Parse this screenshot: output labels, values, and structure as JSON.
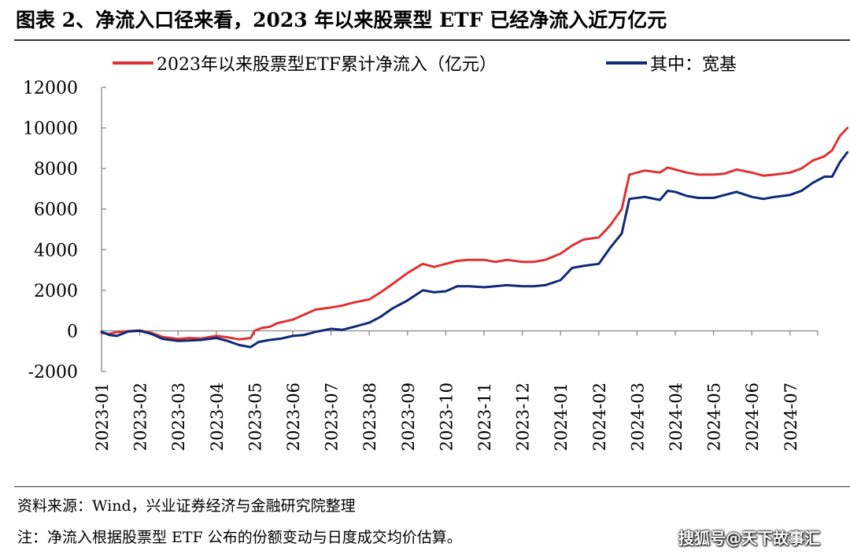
{
  "header": {
    "title": "图表 2、净流入口径来看，2023 年以来股票型 ETF 已经净流入近万亿元"
  },
  "footer": {
    "source": "资料来源：Wind，兴业证券经济与金融研究院整理",
    "note": "注：净流入根据股票型 ETF 公布的份额变动与日度成交均价估算。"
  },
  "watermark": "搜狐号@天下故事汇",
  "colors": {
    "series_red": "#e03232",
    "series_blue": "#0e2a78",
    "axis": "#808080"
  },
  "chart_data": {
    "type": "line",
    "title": "",
    "xlabel": "",
    "ylabel": "",
    "ylim": [
      -2000,
      12000
    ],
    "yticks": [
      -2000,
      0,
      2000,
      4000,
      6000,
      8000,
      10000,
      12000
    ],
    "xlim": [
      0,
      19
    ],
    "categories": [
      "2023-01",
      "2023-02",
      "2023-03",
      "2023-04",
      "2023-05",
      "2023-06",
      "2023-07",
      "2023-08",
      "2023-09",
      "2023-10",
      "2023-11",
      "2023-12",
      "2024-01",
      "2024-02",
      "2024-03",
      "2024-04",
      "2024-05",
      "2024-06",
      "2024-07"
    ],
    "legend_position": "top",
    "series": [
      {
        "name": "2023年以来股票型ETF累计净流入（亿元）",
        "color": "#e03232",
        "points": [
          [
            0,
            -100
          ],
          [
            0.2,
            -150
          ],
          [
            0.4,
            -60
          ],
          [
            0.7,
            -20
          ],
          [
            1.0,
            20
          ],
          [
            1.3,
            -100
          ],
          [
            1.6,
            -300
          ],
          [
            2.0,
            -400
          ],
          [
            2.3,
            -350
          ],
          [
            2.6,
            -380
          ],
          [
            3.0,
            -250
          ],
          [
            3.3,
            -320
          ],
          [
            3.6,
            -420
          ],
          [
            3.9,
            -350
          ],
          [
            4.0,
            0
          ],
          [
            4.2,
            150
          ],
          [
            4.4,
            200
          ],
          [
            4.6,
            380
          ],
          [
            5.0,
            550
          ],
          [
            5.3,
            800
          ],
          [
            5.6,
            1050
          ],
          [
            6.0,
            1150
          ],
          [
            6.3,
            1250
          ],
          [
            6.6,
            1400
          ],
          [
            7.0,
            1550
          ],
          [
            7.3,
            1900
          ],
          [
            7.6,
            2300
          ],
          [
            8.0,
            2850
          ],
          [
            8.4,
            3300
          ],
          [
            8.7,
            3150
          ],
          [
            9.0,
            3300
          ],
          [
            9.3,
            3450
          ],
          [
            9.6,
            3500
          ],
          [
            10.0,
            3500
          ],
          [
            10.3,
            3400
          ],
          [
            10.6,
            3500
          ],
          [
            11.0,
            3400
          ],
          [
            11.3,
            3400
          ],
          [
            11.6,
            3500
          ],
          [
            12.0,
            3800
          ],
          [
            12.3,
            4200
          ],
          [
            12.6,
            4500
          ],
          [
            13.0,
            4600
          ],
          [
            13.3,
            5200
          ],
          [
            13.6,
            6000
          ],
          [
            13.8,
            7700
          ],
          [
            14.2,
            7900
          ],
          [
            14.6,
            7800
          ],
          [
            14.8,
            8050
          ],
          [
            15.0,
            7950
          ],
          [
            15.3,
            7800
          ],
          [
            15.6,
            7700
          ],
          [
            16.0,
            7700
          ],
          [
            16.3,
            7750
          ],
          [
            16.6,
            7950
          ],
          [
            17.0,
            7800
          ],
          [
            17.3,
            7650
          ],
          [
            17.6,
            7700
          ],
          [
            18.0,
            7800
          ],
          [
            18.3,
            8000
          ],
          [
            18.6,
            8400
          ],
          [
            18.9,
            8600
          ],
          [
            19.1,
            8900
          ],
          [
            19.3,
            9600
          ],
          [
            19.5,
            10000
          ]
        ]
      },
      {
        "name": "其中：宽基",
        "color": "#0e2a78",
        "points": [
          [
            0,
            -50
          ],
          [
            0.2,
            -200
          ],
          [
            0.4,
            -250
          ],
          [
            0.7,
            -30
          ],
          [
            1.0,
            0
          ],
          [
            1.3,
            -150
          ],
          [
            1.6,
            -400
          ],
          [
            2.0,
            -500
          ],
          [
            2.3,
            -480
          ],
          [
            2.6,
            -450
          ],
          [
            3.0,
            -350
          ],
          [
            3.3,
            -500
          ],
          [
            3.6,
            -700
          ],
          [
            3.9,
            -800
          ],
          [
            4.1,
            -550
          ],
          [
            4.4,
            -450
          ],
          [
            4.7,
            -380
          ],
          [
            5.0,
            -250
          ],
          [
            5.3,
            -200
          ],
          [
            5.6,
            -50
          ],
          [
            6.0,
            100
          ],
          [
            6.3,
            50
          ],
          [
            6.6,
            200
          ],
          [
            7.0,
            400
          ],
          [
            7.3,
            700
          ],
          [
            7.6,
            1100
          ],
          [
            8.0,
            1500
          ],
          [
            8.4,
            2000
          ],
          [
            8.7,
            1900
          ],
          [
            9.0,
            1950
          ],
          [
            9.3,
            2200
          ],
          [
            9.6,
            2200
          ],
          [
            10.0,
            2150
          ],
          [
            10.3,
            2200
          ],
          [
            10.6,
            2250
          ],
          [
            11.0,
            2200
          ],
          [
            11.3,
            2200
          ],
          [
            11.6,
            2250
          ],
          [
            12.0,
            2500
          ],
          [
            12.3,
            3100
          ],
          [
            12.6,
            3200
          ],
          [
            13.0,
            3300
          ],
          [
            13.3,
            4100
          ],
          [
            13.6,
            4800
          ],
          [
            13.8,
            6500
          ],
          [
            14.2,
            6600
          ],
          [
            14.6,
            6450
          ],
          [
            14.8,
            6900
          ],
          [
            15.0,
            6850
          ],
          [
            15.3,
            6650
          ],
          [
            15.6,
            6550
          ],
          [
            16.0,
            6550
          ],
          [
            16.3,
            6700
          ],
          [
            16.6,
            6850
          ],
          [
            17.0,
            6600
          ],
          [
            17.3,
            6500
          ],
          [
            17.6,
            6600
          ],
          [
            18.0,
            6700
          ],
          [
            18.3,
            6900
          ],
          [
            18.6,
            7300
          ],
          [
            18.9,
            7600
          ],
          [
            19.1,
            7600
          ],
          [
            19.3,
            8300
          ],
          [
            19.5,
            8800
          ]
        ]
      }
    ]
  }
}
